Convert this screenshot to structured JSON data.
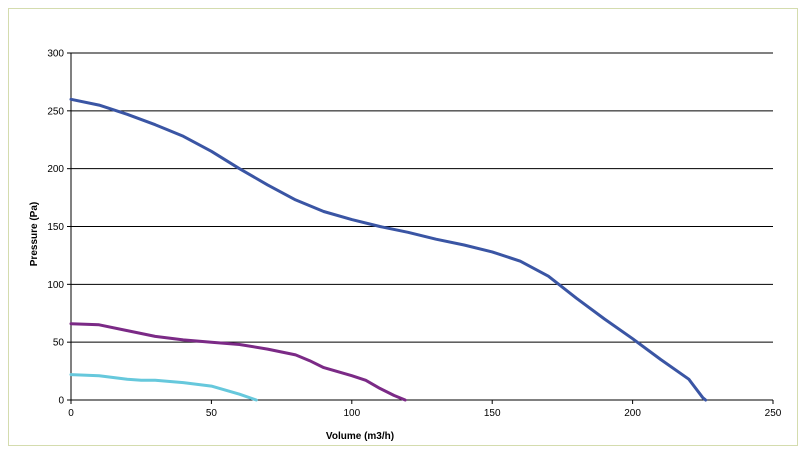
{
  "chart_data": {
    "type": "line",
    "title": "",
    "xlabel": "Volume (m3/h)",
    "ylabel": "Pressure (Pa)",
    "xlim": [
      0,
      250
    ],
    "ylim": [
      0,
      300
    ],
    "x_ticks": [
      "0",
      "50",
      "100",
      "150",
      "200",
      "250"
    ],
    "y_ticks": [
      "0",
      "50",
      "100",
      "150",
      "200",
      "250",
      "300"
    ],
    "grid": "horizontal",
    "legend": "none",
    "series": [
      {
        "color": "#3a55a4",
        "points": [
          [
            0,
            260
          ],
          [
            10,
            255
          ],
          [
            20,
            247
          ],
          [
            30,
            238
          ],
          [
            40,
            228
          ],
          [
            50,
            215
          ],
          [
            60,
            200
          ],
          [
            70,
            186
          ],
          [
            80,
            173
          ],
          [
            90,
            163
          ],
          [
            100,
            156
          ],
          [
            110,
            150
          ],
          [
            120,
            145
          ],
          [
            130,
            139
          ],
          [
            140,
            134
          ],
          [
            150,
            128
          ],
          [
            160,
            120
          ],
          [
            170,
            107
          ],
          [
            180,
            88
          ],
          [
            190,
            70
          ],
          [
            200,
            53
          ],
          [
            210,
            35
          ],
          [
            220,
            18
          ],
          [
            225,
            2
          ],
          [
            226,
            0
          ]
        ]
      },
      {
        "color": "#7b2a86",
        "points": [
          [
            0,
            66
          ],
          [
            10,
            65
          ],
          [
            20,
            60
          ],
          [
            30,
            55
          ],
          [
            40,
            52
          ],
          [
            50,
            50
          ],
          [
            60,
            48
          ],
          [
            70,
            44
          ],
          [
            80,
            39
          ],
          [
            85,
            34
          ],
          [
            90,
            28
          ],
          [
            100,
            21
          ],
          [
            105,
            17
          ],
          [
            110,
            10
          ],
          [
            115,
            4
          ],
          [
            119,
            0
          ]
        ]
      },
      {
        "color": "#66c8dc",
        "points": [
          [
            0,
            22
          ],
          [
            10,
            21
          ],
          [
            20,
            18
          ],
          [
            25,
            17
          ],
          [
            30,
            17
          ],
          [
            40,
            15
          ],
          [
            50,
            12
          ],
          [
            60,
            5
          ],
          [
            66,
            0
          ]
        ]
      }
    ]
  }
}
